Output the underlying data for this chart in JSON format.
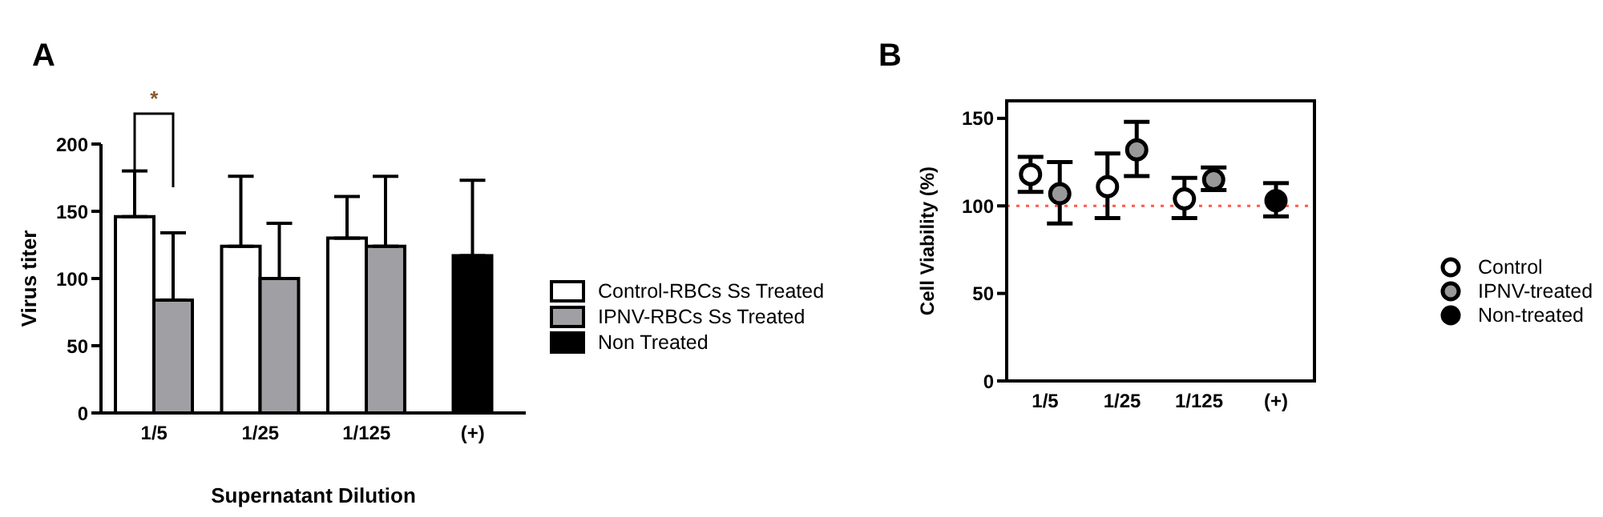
{
  "chart_data": [
    {
      "type": "bar",
      "title": "A",
      "xlabel": "Supernatant Dilution",
      "ylabel": "Virus titer",
      "categories": [
        "1/5",
        "1/25",
        "1/125",
        "(+)"
      ],
      "ylim": [
        0,
        200
      ],
      "yticks": [
        0,
        50,
        100,
        150,
        200
      ],
      "legend": "right",
      "annotations": [
        "*"
      ],
      "series": [
        {
          "name": "Control-RBCs Ss Treated",
          "color": "#ffffff",
          "values": [
            146,
            124,
            130,
            null
          ],
          "errors": [
            [
              146,
              180
            ],
            [
              124,
              176
            ],
            [
              130,
              161
            ],
            null
          ]
        },
        {
          "name": "IPNV-RBCs Ss Treated",
          "color": "#a0a0a4",
          "values": [
            84,
            100,
            124,
            null
          ],
          "errors": [
            [
              84,
              134
            ],
            [
              100,
              141
            ],
            [
              124,
              176
            ],
            null
          ]
        },
        {
          "name": "Non Treated",
          "color": "#000000",
          "values": [
            null,
            null,
            null,
            117
          ],
          "errors": [
            null,
            null,
            null,
            [
              117,
              173
            ]
          ]
        }
      ]
    },
    {
      "type": "scatter",
      "title": "B",
      "ylabel": "Cell Viability  (%)",
      "categories": [
        "1/5",
        "1/25",
        "1/125",
        "(+)"
      ],
      "ylim": [
        0,
        160
      ],
      "yticks": [
        0,
        50,
        100,
        150
      ],
      "legend": "right",
      "marker": "circle",
      "ref_lines": [
        {
          "axis": "y",
          "value": 100,
          "color": "#ff5a4a",
          "line_style": "dotted"
        }
      ],
      "series": [
        {
          "name": "Control",
          "color": "#ffffff",
          "values": [
            118,
            111,
            104,
            null
          ],
          "errors": [
            [
              108,
              128
            ],
            [
              93,
              130
            ],
            [
              93,
              116
            ],
            null
          ]
        },
        {
          "name": "IPNV-treated",
          "color": "#999999",
          "values": [
            107,
            132,
            115,
            null
          ],
          "errors": [
            [
              90,
              125
            ],
            [
              117,
              148
            ],
            [
              109,
              122
            ],
            null
          ]
        },
        {
          "name": "Non-treated",
          "color": "#000000",
          "values": [
            null,
            null,
            null,
            103
          ],
          "errors": [
            null,
            null,
            null,
            [
              94,
              113
            ]
          ]
        }
      ]
    }
  ]
}
